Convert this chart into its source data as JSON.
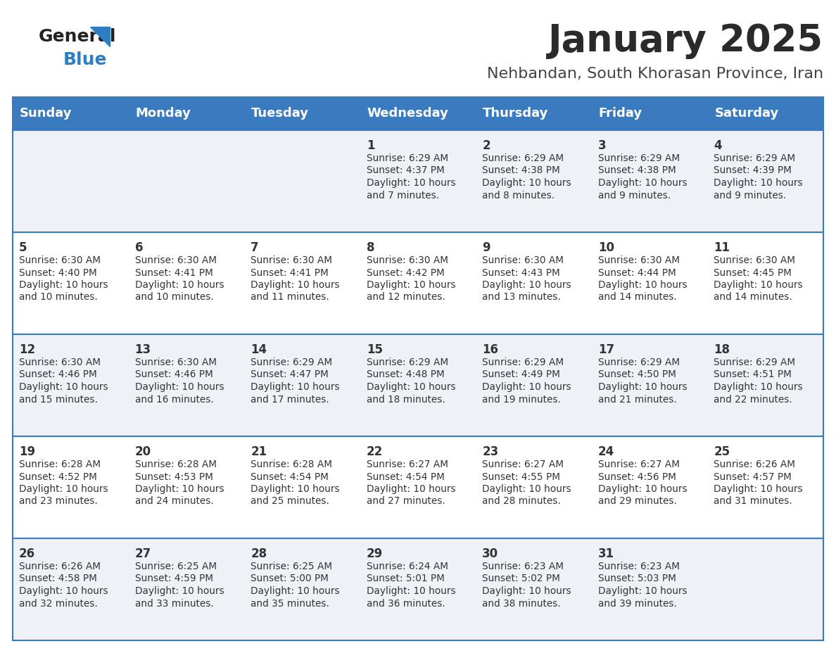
{
  "title": "January 2025",
  "subtitle": "Nehbandan, South Khorasan Province, Iran",
  "header_bg": "#3a7bbf",
  "header_text": "#ffffff",
  "row_bg_odd": "#eef2f7",
  "row_bg_even": "#ffffff",
  "border_color": "#3a7bbf",
  "day_names": [
    "Sunday",
    "Monday",
    "Tuesday",
    "Wednesday",
    "Thursday",
    "Friday",
    "Saturday"
  ],
  "title_color": "#2a2a2a",
  "subtitle_color": "#444444",
  "logo_general_color": "#222222",
  "logo_blue_color": "#2e7fc1",
  "days": [
    {
      "day": 1,
      "col": 3,
      "row": 0,
      "sunrise": "6:29 AM",
      "sunset": "4:37 PM",
      "daylight": "10 hours and 7 minutes."
    },
    {
      "day": 2,
      "col": 4,
      "row": 0,
      "sunrise": "6:29 AM",
      "sunset": "4:38 PM",
      "daylight": "10 hours and 8 minutes."
    },
    {
      "day": 3,
      "col": 5,
      "row": 0,
      "sunrise": "6:29 AM",
      "sunset": "4:38 PM",
      "daylight": "10 hours and 9 minutes."
    },
    {
      "day": 4,
      "col": 6,
      "row": 0,
      "sunrise": "6:29 AM",
      "sunset": "4:39 PM",
      "daylight": "10 hours and 9 minutes."
    },
    {
      "day": 5,
      "col": 0,
      "row": 1,
      "sunrise": "6:30 AM",
      "sunset": "4:40 PM",
      "daylight": "10 hours and 10 minutes."
    },
    {
      "day": 6,
      "col": 1,
      "row": 1,
      "sunrise": "6:30 AM",
      "sunset": "4:41 PM",
      "daylight": "10 hours and 10 minutes."
    },
    {
      "day": 7,
      "col": 2,
      "row": 1,
      "sunrise": "6:30 AM",
      "sunset": "4:41 PM",
      "daylight": "10 hours and 11 minutes."
    },
    {
      "day": 8,
      "col": 3,
      "row": 1,
      "sunrise": "6:30 AM",
      "sunset": "4:42 PM",
      "daylight": "10 hours and 12 minutes."
    },
    {
      "day": 9,
      "col": 4,
      "row": 1,
      "sunrise": "6:30 AM",
      "sunset": "4:43 PM",
      "daylight": "10 hours and 13 minutes."
    },
    {
      "day": 10,
      "col": 5,
      "row": 1,
      "sunrise": "6:30 AM",
      "sunset": "4:44 PM",
      "daylight": "10 hours and 14 minutes."
    },
    {
      "day": 11,
      "col": 6,
      "row": 1,
      "sunrise": "6:30 AM",
      "sunset": "4:45 PM",
      "daylight": "10 hours and 14 minutes."
    },
    {
      "day": 12,
      "col": 0,
      "row": 2,
      "sunrise": "6:30 AM",
      "sunset": "4:46 PM",
      "daylight": "10 hours and 15 minutes."
    },
    {
      "day": 13,
      "col": 1,
      "row": 2,
      "sunrise": "6:30 AM",
      "sunset": "4:46 PM",
      "daylight": "10 hours and 16 minutes."
    },
    {
      "day": 14,
      "col": 2,
      "row": 2,
      "sunrise": "6:29 AM",
      "sunset": "4:47 PM",
      "daylight": "10 hours and 17 minutes."
    },
    {
      "day": 15,
      "col": 3,
      "row": 2,
      "sunrise": "6:29 AM",
      "sunset": "4:48 PM",
      "daylight": "10 hours and 18 minutes."
    },
    {
      "day": 16,
      "col": 4,
      "row": 2,
      "sunrise": "6:29 AM",
      "sunset": "4:49 PM",
      "daylight": "10 hours and 19 minutes."
    },
    {
      "day": 17,
      "col": 5,
      "row": 2,
      "sunrise": "6:29 AM",
      "sunset": "4:50 PM",
      "daylight": "10 hours and 21 minutes."
    },
    {
      "day": 18,
      "col": 6,
      "row": 2,
      "sunrise": "6:29 AM",
      "sunset": "4:51 PM",
      "daylight": "10 hours and 22 minutes."
    },
    {
      "day": 19,
      "col": 0,
      "row": 3,
      "sunrise": "6:28 AM",
      "sunset": "4:52 PM",
      "daylight": "10 hours and 23 minutes."
    },
    {
      "day": 20,
      "col": 1,
      "row": 3,
      "sunrise": "6:28 AM",
      "sunset": "4:53 PM",
      "daylight": "10 hours and 24 minutes."
    },
    {
      "day": 21,
      "col": 2,
      "row": 3,
      "sunrise": "6:28 AM",
      "sunset": "4:54 PM",
      "daylight": "10 hours and 25 minutes."
    },
    {
      "day": 22,
      "col": 3,
      "row": 3,
      "sunrise": "6:27 AM",
      "sunset": "4:54 PM",
      "daylight": "10 hours and 27 minutes."
    },
    {
      "day": 23,
      "col": 4,
      "row": 3,
      "sunrise": "6:27 AM",
      "sunset": "4:55 PM",
      "daylight": "10 hours and 28 minutes."
    },
    {
      "day": 24,
      "col": 5,
      "row": 3,
      "sunrise": "6:27 AM",
      "sunset": "4:56 PM",
      "daylight": "10 hours and 29 minutes."
    },
    {
      "day": 25,
      "col": 6,
      "row": 3,
      "sunrise": "6:26 AM",
      "sunset": "4:57 PM",
      "daylight": "10 hours and 31 minutes."
    },
    {
      "day": 26,
      "col": 0,
      "row": 4,
      "sunrise": "6:26 AM",
      "sunset": "4:58 PM",
      "daylight": "10 hours and 32 minutes."
    },
    {
      "day": 27,
      "col": 1,
      "row": 4,
      "sunrise": "6:25 AM",
      "sunset": "4:59 PM",
      "daylight": "10 hours and 33 minutes."
    },
    {
      "day": 28,
      "col": 2,
      "row": 4,
      "sunrise": "6:25 AM",
      "sunset": "5:00 PM",
      "daylight": "10 hours and 35 minutes."
    },
    {
      "day": 29,
      "col": 3,
      "row": 4,
      "sunrise": "6:24 AM",
      "sunset": "5:01 PM",
      "daylight": "10 hours and 36 minutes."
    },
    {
      "day": 30,
      "col": 4,
      "row": 4,
      "sunrise": "6:23 AM",
      "sunset": "5:02 PM",
      "daylight": "10 hours and 38 minutes."
    },
    {
      "day": 31,
      "col": 5,
      "row": 4,
      "sunrise": "6:23 AM",
      "sunset": "5:03 PM",
      "daylight": "10 hours and 39 minutes."
    }
  ]
}
